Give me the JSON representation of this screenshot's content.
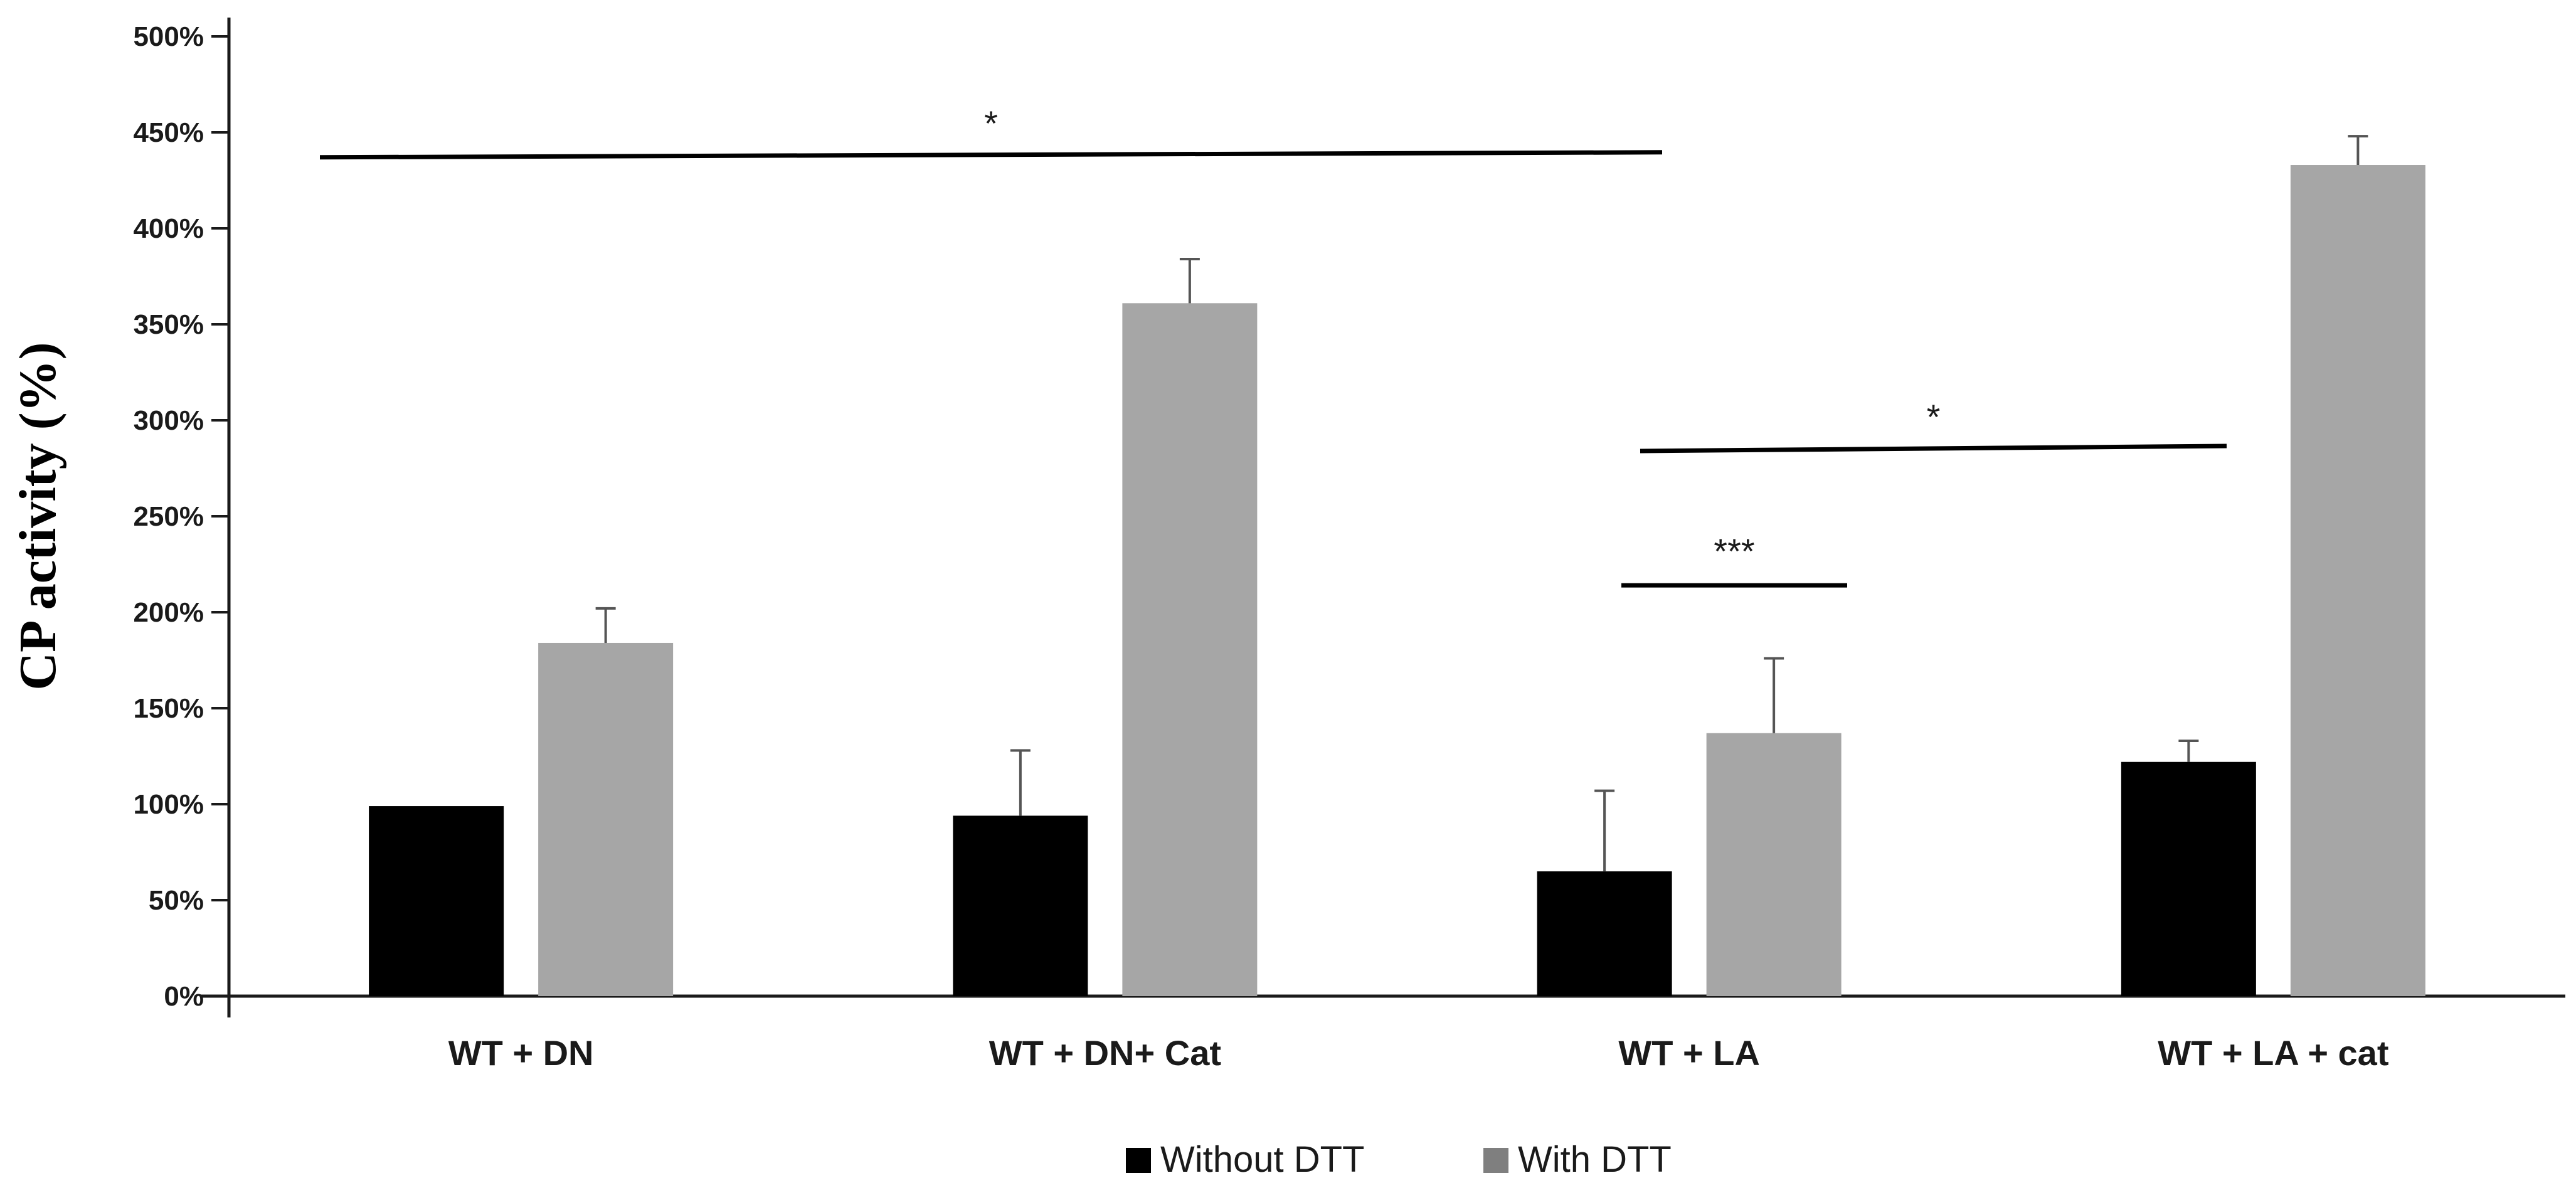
{
  "chart_data": {
    "type": "bar",
    "title": "",
    "xlabel": "",
    "ylabel": "CP activity (%)",
    "ylim": [
      0,
      500
    ],
    "yticks": [
      0,
      50,
      100,
      150,
      200,
      250,
      300,
      350,
      400,
      450,
      500
    ],
    "ytick_suffix": "%",
    "grid": false,
    "legend_position": "bottom",
    "categories": [
      "WT + DN",
      "WT + DN+ Cat",
      "WT + LA",
      "WT + LA + cat"
    ],
    "series": [
      {
        "name": "Without DTT",
        "color": "#000000",
        "values": [
          99,
          94,
          65,
          122
        ],
        "errors": [
          0,
          34,
          42,
          11
        ]
      },
      {
        "name": "With DTT",
        "color": "#a6a6a6",
        "values": [
          184,
          361,
          137,
          433
        ],
        "errors": [
          18,
          23,
          39,
          15
        ]
      }
    ],
    "legend_swatch_colors": [
      "#000000",
      "#7f7f7f"
    ],
    "annotations": [
      {
        "label": "*",
        "from_category": 0,
        "to_category": 2,
        "y": 437
      },
      {
        "label": "*",
        "from_category": 2,
        "to_category": 3,
        "y": 284
      },
      {
        "label": "***",
        "from_category": 2,
        "to_category": 2,
        "y": 214
      }
    ]
  }
}
